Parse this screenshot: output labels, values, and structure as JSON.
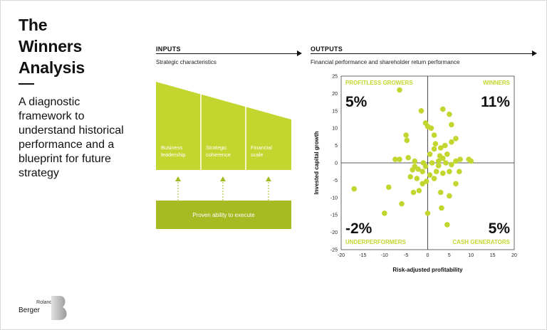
{
  "title": {
    "line1": "The",
    "line2": "Winners",
    "line3": "Analysis"
  },
  "subtitle": {
    "line1": "A diagnostic",
    "line2": "framework to",
    "line3": "understand historical",
    "line4": "performance and a",
    "line5": "blueprint for future",
    "line6": "strategy"
  },
  "inputs": {
    "heading": "INPUTS",
    "subheading": "Strategic characteristics",
    "columns": [
      {
        "line1": "Business",
        "line2": "leadership"
      },
      {
        "line1": "Strategic",
        "line2": "coherence"
      },
      {
        "line1": "Financial",
        "line2": "scale"
      }
    ],
    "base_label": "Proven ability to execute"
  },
  "outputs": {
    "heading": "OUTPUTS",
    "subheading": "Financial performance and shareholder return performance"
  },
  "colors": {
    "accent": "#c2d62f",
    "accent_dark": "#a6ba22",
    "point": "#c2d62f"
  },
  "logo": {
    "small": "Roland",
    "big": "Berger"
  },
  "chart_data": {
    "type": "scatter",
    "xlabel": "Risk-adjusted profitability",
    "ylabel": "Invested capital growth",
    "xlim": [
      -20,
      20
    ],
    "ylim": [
      -25,
      25
    ],
    "x_ticks": [
      "-20",
      "-15",
      "-10",
      "-5",
      "0",
      "5",
      "10",
      "15",
      "20"
    ],
    "y_ticks": [
      "25",
      "20",
      "15",
      "10",
      "5",
      "0",
      "-5",
      "-10",
      "-15",
      "-20",
      "-25"
    ],
    "quadrants": {
      "top_left": {
        "label": "PROFITLESS GROWERS",
        "value": "5%"
      },
      "top_right": {
        "label": "WINNERS",
        "value": "11%"
      },
      "bottom_left": {
        "label": "UNDERPERFORMERS",
        "value": "-2%"
      },
      "bottom_right": {
        "label": "CASH GENERATORS",
        "value": "5%"
      }
    },
    "points": [
      [
        -6.5,
        21
      ],
      [
        -5,
        8
      ],
      [
        -4.8,
        6.5
      ],
      [
        -7.5,
        1
      ],
      [
        -6.5,
        1
      ],
      [
        -4.5,
        1.5
      ],
      [
        -3,
        0.5
      ],
      [
        -3.5,
        -2
      ],
      [
        -3,
        -1
      ],
      [
        -2.2,
        -1.8
      ],
      [
        -4,
        -4
      ],
      [
        -2.5,
        -4.5
      ],
      [
        -1.2,
        -2.5
      ],
      [
        -1,
        0
      ],
      [
        -0.5,
        -1
      ],
      [
        -2,
        -8
      ],
      [
        -3.3,
        -8.5
      ],
      [
        -6,
        -11.8
      ],
      [
        -9,
        -7
      ],
      [
        -10,
        -14.5
      ],
      [
        -17,
        -7.5
      ],
      [
        -1.5,
        15
      ],
      [
        -0.5,
        11.5
      ],
      [
        0,
        10.5
      ],
      [
        0.8,
        10
      ],
      [
        1.5,
        8
      ],
      [
        1.8,
        5.5
      ],
      [
        1.5,
        4
      ],
      [
        0.5,
        2.5
      ],
      [
        1,
        0
      ],
      [
        0.5,
        -3.5
      ],
      [
        -0.3,
        -5.3
      ],
      [
        -1.2,
        -6
      ],
      [
        0,
        -14.5
      ],
      [
        3.5,
        15.5
      ],
      [
        5,
        14
      ],
      [
        5.5,
        11
      ],
      [
        6.5,
        7
      ],
      [
        5.5,
        6
      ],
      [
        4,
        5
      ],
      [
        3,
        4.3
      ],
      [
        2.8,
        2
      ],
      [
        3.5,
        1.3
      ],
      [
        4.5,
        2.5
      ],
      [
        2.5,
        0.5
      ],
      [
        4.2,
        0
      ],
      [
        5.5,
        -0.5
      ],
      [
        6.5,
        0.5
      ],
      [
        7.5,
        1
      ],
      [
        7.3,
        -2.5
      ],
      [
        5,
        -2.5
      ],
      [
        3.5,
        -3
      ],
      [
        2,
        -2.5
      ],
      [
        1.5,
        -4.5
      ],
      [
        3,
        -8.5
      ],
      [
        6.5,
        -6
      ],
      [
        5,
        -9.5
      ],
      [
        10,
        0.5
      ],
      [
        9.5,
        1
      ],
      [
        2.5,
        -0.8
      ],
      [
        3.2,
        -13
      ],
      [
        4.5,
        -17.8
      ]
    ]
  }
}
